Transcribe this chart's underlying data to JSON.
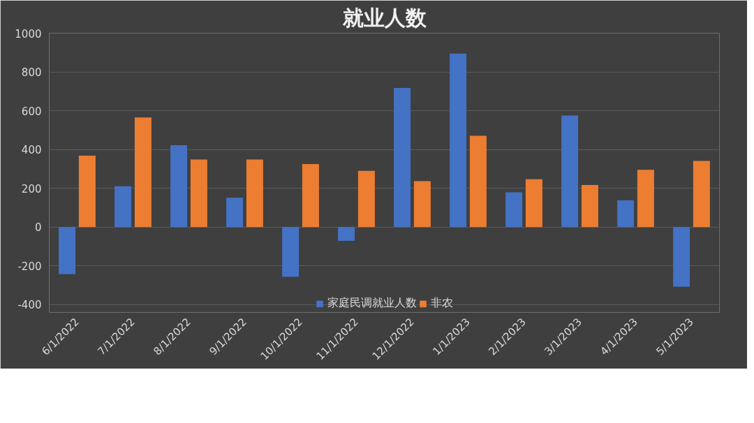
{
  "chart_data": {
    "type": "bar",
    "title": "就业人数",
    "categories": [
      "6/1/2022",
      "7/1/2022",
      "8/1/2022",
      "9/1/2022",
      "10/1/2022",
      "11/1/2022",
      "12/1/2022",
      "1/1/2023",
      "2/1/2023",
      "3/1/2023",
      "4/1/2023",
      "5/1/2023"
    ],
    "series": [
      {
        "name": "家庭民调就业人数",
        "color": "#4472c4",
        "values": [
          -243,
          211,
          422,
          151,
          -256,
          -71,
          717,
          895,
          179,
          575,
          138,
          -308
        ]
      },
      {
        "name": "非农",
        "color": "#ed7d31",
        "values": [
          368,
          565,
          348,
          348,
          325,
          290,
          237,
          471,
          247,
          217,
          295,
          341
        ]
      }
    ],
    "ylim": [
      -440,
      1000
    ],
    "yticks": [
      -400,
      -200,
      0,
      200,
      400,
      600,
      800,
      1000
    ],
    "grid": "y",
    "legend": "bottom"
  }
}
